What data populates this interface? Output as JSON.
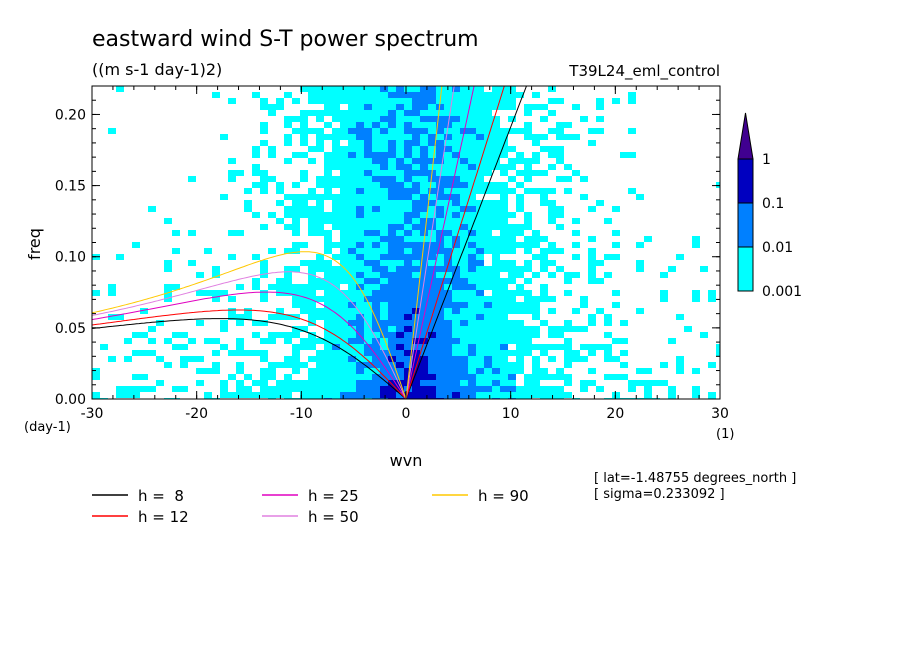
{
  "chart_data": {
    "type": "heatmap",
    "title": "eastward wind S-T power spectrum",
    "subtitle": "((m s-1 day-1)2)",
    "run_label": "T39L24_eml_control",
    "xlabel": "wvn",
    "ylabel": "freq",
    "x_units": "(1)",
    "y_units": "(day-1)",
    "xlim": [
      -30,
      30
    ],
    "ylim": [
      0,
      0.22
    ],
    "x_ticks": [
      -30,
      -20,
      -10,
      0,
      10,
      20,
      30
    ],
    "x_tick_labels": [
      "-30",
      "-20",
      "-10",
      "0",
      "10",
      "20",
      "30"
    ],
    "y_ticks": [
      0,
      0.05,
      0.1,
      0.15,
      0.2
    ],
    "y_tick_labels": [
      "0.00",
      "0.05",
      "0.10",
      "0.15",
      "0.20"
    ],
    "colorbar": {
      "levels": [
        "0.001",
        "0.01",
        "0.1",
        "1"
      ],
      "colors": [
        "#00ffff",
        "#0080ff",
        "#0000c0",
        "#400090"
      ]
    },
    "annotations": [
      "[ lat=-1.48755 degrees_north ]",
      "[ sigma=0.233092 ]"
    ],
    "series": [
      {
        "name": "h =  8",
        "color": "#000000",
        "h": 8
      },
      {
        "name": "h = 12",
        "color": "#ff0000",
        "h": 12
      },
      {
        "name": "h = 25",
        "color": "#e000c0",
        "h": 25
      },
      {
        "name": "h = 50",
        "color": "#e080e0",
        "h": 50
      },
      {
        "name": "h = 90",
        "color": "#ffc800",
        "h": 90
      }
    ]
  }
}
